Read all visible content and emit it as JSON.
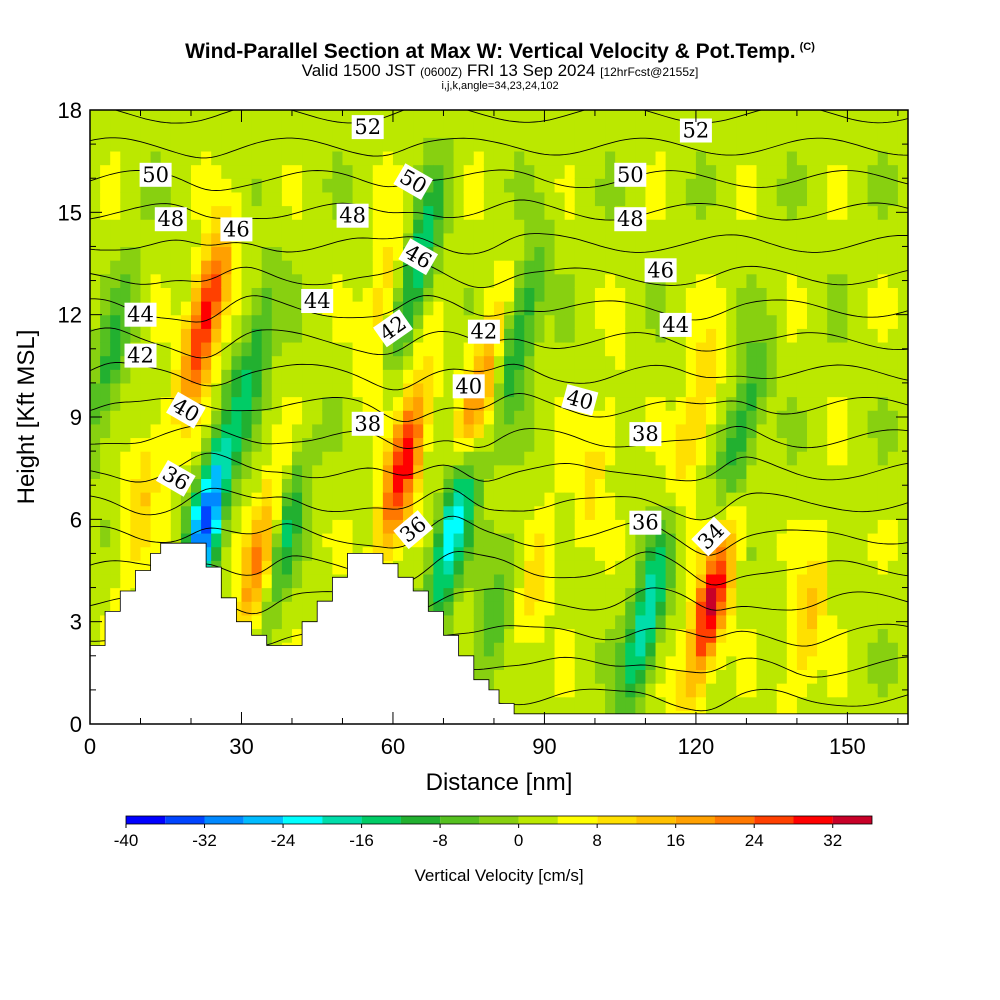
{
  "header": {
    "title": "Wind-Parallel Section at Max W: Vertical Velocity & Pot.Temp.",
    "copyright": "(C)",
    "valid_prefix": "Valid 1500 JST",
    "valid_utc": "(0600Z)",
    "valid_date": "FRI 13 Sep 2024",
    "forecast": "[12hrFcst@2155z]",
    "indices": "i,j,k,angle=34,23,24,102"
  },
  "chart_data": {
    "type": "heatmap",
    "title": "Wind-Parallel Section at Max W: Vertical Velocity & Pot.Temp.",
    "xlabel": "Distance [nm]",
    "ylabel": "Height [Kft MSL]",
    "xlim": [
      0,
      162
    ],
    "ylim": [
      0,
      18
    ],
    "xticks": [
      0,
      30,
      60,
      90,
      120,
      150
    ],
    "yticks": [
      0,
      3,
      6,
      9,
      12,
      15,
      18
    ],
    "colorbar": {
      "title": "Vertical Velocity [cm/s]",
      "ticks": [
        -40,
        -32,
        -24,
        -16,
        -8,
        0,
        8,
        16,
        24,
        32
      ],
      "bounds": [
        -40,
        36
      ],
      "step": 4,
      "colors": [
        "#0000ff",
        "#0044ff",
        "#0088ff",
        "#00bbff",
        "#00ffff",
        "#00ddaa",
        "#00cc66",
        "#22b030",
        "#55c020",
        "#88d010",
        "#bbe800",
        "#ffff00",
        "#ffe000",
        "#ffc000",
        "#ffa000",
        "#ff7800",
        "#ff4000",
        "#ff0000",
        "#c80028",
        "#a00050",
        "#600090"
      ]
    },
    "terrain": [
      {
        "x": 0,
        "z": 2.3
      },
      {
        "x": 3,
        "z": 2.3
      },
      {
        "x": 3,
        "z": 3.3
      },
      {
        "x": 6,
        "z": 3.3
      },
      {
        "x": 6,
        "z": 3.9
      },
      {
        "x": 9,
        "z": 3.9
      },
      {
        "x": 9,
        "z": 4.5
      },
      {
        "x": 12,
        "z": 4.5
      },
      {
        "x": 12,
        "z": 5.0
      },
      {
        "x": 14,
        "z": 5.0
      },
      {
        "x": 14,
        "z": 5.3
      },
      {
        "x": 23,
        "z": 5.3
      },
      {
        "x": 23,
        "z": 4.6
      },
      {
        "x": 26,
        "z": 4.6
      },
      {
        "x": 26,
        "z": 3.7
      },
      {
        "x": 29,
        "z": 3.7
      },
      {
        "x": 29,
        "z": 3.0
      },
      {
        "x": 32,
        "z": 3.0
      },
      {
        "x": 32,
        "z": 2.6
      },
      {
        "x": 35,
        "z": 2.6
      },
      {
        "x": 35,
        "z": 2.3
      },
      {
        "x": 42,
        "z": 2.3
      },
      {
        "x": 42,
        "z": 3.0
      },
      {
        "x": 45,
        "z": 3.0
      },
      {
        "x": 45,
        "z": 3.6
      },
      {
        "x": 48,
        "z": 3.6
      },
      {
        "x": 48,
        "z": 4.3
      },
      {
        "x": 51,
        "z": 4.3
      },
      {
        "x": 51,
        "z": 5.0
      },
      {
        "x": 58,
        "z": 5.0
      },
      {
        "x": 58,
        "z": 4.7
      },
      {
        "x": 61,
        "z": 4.7
      },
      {
        "x": 61,
        "z": 4.3
      },
      {
        "x": 64,
        "z": 4.3
      },
      {
        "x": 64,
        "z": 3.9
      },
      {
        "x": 67,
        "z": 3.9
      },
      {
        "x": 67,
        "z": 3.3
      },
      {
        "x": 70,
        "z": 3.3
      },
      {
        "x": 70,
        "z": 2.6
      },
      {
        "x": 73,
        "z": 2.6
      },
      {
        "x": 73,
        "z": 2.0
      },
      {
        "x": 76,
        "z": 2.0
      },
      {
        "x": 76,
        "z": 1.3
      },
      {
        "x": 79,
        "z": 1.3
      },
      {
        "x": 79,
        "z": 1.0
      },
      {
        "x": 81,
        "z": 1.0
      },
      {
        "x": 81,
        "z": 0.6
      },
      {
        "x": 84,
        "z": 0.6
      },
      {
        "x": 84,
        "z": 0.3
      },
      {
        "x": 162,
        "z": 0.3
      }
    ],
    "updraft_cores": [
      {
        "x": 23,
        "z": 12.0,
        "w": 30
      },
      {
        "x": 34,
        "z": 4.8,
        "w": 22
      },
      {
        "x": 62,
        "z": 7.5,
        "w": 30
      },
      {
        "x": 77,
        "z": 9.7,
        "w": 20
      },
      {
        "x": 123,
        "z": 3.5,
        "w": 32
      },
      {
        "x": 58,
        "z": 12.5,
        "w": 10
      },
      {
        "x": 120,
        "z": 9.0,
        "w": 12
      },
      {
        "x": 100,
        "z": 7.5,
        "w": 8
      },
      {
        "x": 142,
        "z": 3.0,
        "w": 12
      },
      {
        "x": 88,
        "z": 4.0,
        "w": 8
      },
      {
        "x": 10,
        "z": 6.5,
        "w": 10
      }
    ],
    "downdraft_cores": [
      {
        "x": 23,
        "z": 6.0,
        "w": -34
      },
      {
        "x": 38,
        "z": 5.5,
        "w": -18
      },
      {
        "x": 72,
        "z": 5.8,
        "w": -28
      },
      {
        "x": 65,
        "z": 13.5,
        "w": -18
      },
      {
        "x": 85,
        "z": 11.5,
        "w": -16
      },
      {
        "x": 110,
        "z": 3.0,
        "w": -22
      },
      {
        "x": 129,
        "z": 8.5,
        "w": -16
      },
      {
        "x": 4,
        "z": 10.5,
        "w": -12
      },
      {
        "x": 32,
        "z": 10.5,
        "w": -14
      },
      {
        "x": 80,
        "z": 3.0,
        "w": -10
      }
    ],
    "isentropes": [
      34,
      35,
      36,
      37,
      38,
      39,
      40,
      41,
      42,
      43,
      44,
      45,
      46,
      47,
      48,
      49,
      50,
      51,
      52
    ],
    "contour_labels": [
      {
        "text": "52",
        "x": 55,
        "z": 17.5,
        "rot": 0
      },
      {
        "text": "52",
        "x": 120,
        "z": 17.4,
        "rot": 0
      },
      {
        "text": "50",
        "x": 13,
        "z": 16.1,
        "rot": 0
      },
      {
        "text": "50",
        "x": 64,
        "z": 15.9,
        "rot": 30
      },
      {
        "text": "50",
        "x": 107,
        "z": 16.1,
        "rot": 0
      },
      {
        "text": "48",
        "x": 16,
        "z": 14.8,
        "rot": 0
      },
      {
        "text": "48",
        "x": 52,
        "z": 14.9,
        "rot": 0
      },
      {
        "text": "48",
        "x": 107,
        "z": 14.8,
        "rot": 0
      },
      {
        "text": "46",
        "x": 29,
        "z": 14.5,
        "rot": 0
      },
      {
        "text": "46",
        "x": 65,
        "z": 13.7,
        "rot": 30
      },
      {
        "text": "46",
        "x": 113,
        "z": 13.3,
        "rot": 0
      },
      {
        "text": "44",
        "x": 10,
        "z": 12.0,
        "rot": 0
      },
      {
        "text": "44",
        "x": 45,
        "z": 12.4,
        "rot": 0
      },
      {
        "text": "44",
        "x": 116,
        "z": 11.7,
        "rot": 0
      },
      {
        "text": "42",
        "x": 10,
        "z": 10.8,
        "rot": 0
      },
      {
        "text": "42",
        "x": 60,
        "z": 11.6,
        "rot": -35
      },
      {
        "text": "42",
        "x": 78,
        "z": 11.5,
        "rot": 0
      },
      {
        "text": "40",
        "x": 19,
        "z": 9.2,
        "rot": 30
      },
      {
        "text": "40",
        "x": 75,
        "z": 9.9,
        "rot": 0
      },
      {
        "text": "40",
        "x": 97,
        "z": 9.5,
        "rot": 15
      },
      {
        "text": "38",
        "x": 55,
        "z": 8.8,
        "rot": 0
      },
      {
        "text": "38",
        "x": 110,
        "z": 8.5,
        "rot": 0
      },
      {
        "text": "36",
        "x": 17,
        "z": 7.2,
        "rot": 30
      },
      {
        "text": "36",
        "x": 64,
        "z": 5.7,
        "rot": -40
      },
      {
        "text": "36",
        "x": 110,
        "z": 5.9,
        "rot": 0
      },
      {
        "text": "34",
        "x": 123,
        "z": 5.5,
        "rot": -45
      }
    ]
  }
}
